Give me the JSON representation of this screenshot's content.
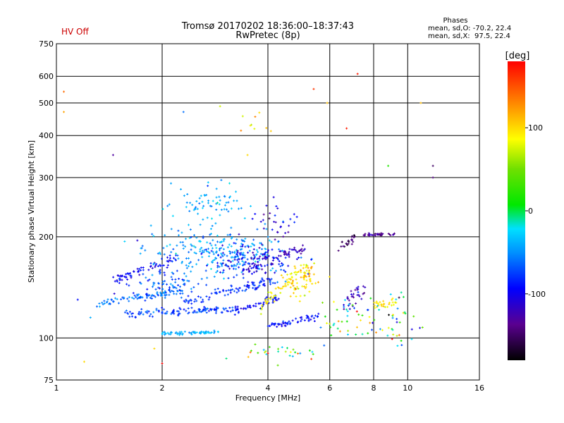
{
  "header": {
    "status": "HV Off",
    "status_color": "#cc0000",
    "title_line1": "Tromsø 20170202 18:36:00–18:37:43",
    "title_line2": "RwPretec (8p)",
    "phase_title": "Phases",
    "phase_line_o": "mean, sd,O: -70.2, 22.4",
    "phase_line_x": "mean, sd,X:  97.5, 22.4"
  },
  "colorbar": {
    "unit": "deg",
    "range": [
      -180,
      180
    ],
    "ticks": [
      {
        "value": 100,
        "label": "100"
      },
      {
        "value": 0,
        "label": "0"
      },
      {
        "value": -100,
        "label": "-100"
      }
    ]
  },
  "chart_data": {
    "type": "scatter",
    "title": "Tromsø 20170202 18:36:00–18:37:43",
    "subtitle": "RwPretec (8p)",
    "xlabel": "Frequency [MHz]",
    "ylabel": "Stationary phase Virtual Height [km]",
    "xscale": "log",
    "yscale": "log",
    "xlim": [
      1,
      16
    ],
    "ylim": [
      75,
      750
    ],
    "xticks": [
      1,
      2,
      4,
      6,
      8,
      10,
      16
    ],
    "yticks": [
      75,
      100,
      200,
      300,
      400,
      500,
      600,
      750
    ],
    "grid": true,
    "traces": [
      {
        "x": [
          1.45,
          2.2
        ],
        "y": [
          148,
          175
        ],
        "phase": -100,
        "spread": 0.03
      },
      {
        "x": [
          1.3,
          2.3
        ],
        "y": [
          127,
          138
        ],
        "phase": -60,
        "spread": 0.025
      },
      {
        "x": [
          1.55,
          3.3
        ],
        "y": [
          118,
          122
        ],
        "phase": -75,
        "spread": 0.02
      },
      {
        "x": [
          2.3,
          4.2
        ],
        "y": [
          127,
          150
        ],
        "phase": -80,
        "spread": 0.03
      },
      {
        "x": [
          3.2,
          4.3
        ],
        "y": [
          120,
          132
        ],
        "phase": -95,
        "spread": 0.02
      },
      {
        "x": [
          3.8,
          5.2
        ],
        "y": [
          124,
          165
        ],
        "phase": 90,
        "spread": 0.035
      },
      {
        "x": [
          4.0,
          5.6
        ],
        "y": [
          108,
          116
        ],
        "phase": -90,
        "spread": 0.02
      },
      {
        "x": [
          2.0,
          2.9
        ],
        "y": [
          103,
          104
        ],
        "phase": -40,
        "spread": 0.01
      },
      {
        "x": [
          3.4,
          4.0
        ],
        "y": [
          155,
          180
        ],
        "phase": -110,
        "spread": 0.04
      },
      {
        "x": [
          4.2,
          5.1
        ],
        "y": [
          175,
          185
        ],
        "phase": -120,
        "spread": 0.03
      },
      {
        "x": [
          6.3,
          7.1
        ],
        "y": [
          185,
          200
        ],
        "phase": -150,
        "spread": 0.03
      },
      {
        "x": [
          7.4,
          9.2
        ],
        "y": [
          203,
          203
        ],
        "phase": -135,
        "spread": 0.008
      },
      {
        "x": [
          6.5,
          7.6
        ],
        "y": [
          125,
          142
        ],
        "phase": -120,
        "spread": 0.05
      },
      {
        "x": [
          8.0,
          9.3
        ],
        "y": [
          125,
          128
        ],
        "phase": 95,
        "spread": 0.02
      }
    ],
    "clouds": [
      {
        "cx": 2.9,
        "cy": 180,
        "sx": 0.38,
        "sy": 0.14,
        "n": 260,
        "phase": -45,
        "pspread": 25
      },
      {
        "cx": 2.7,
        "cy": 255,
        "sx": 0.22,
        "sy": 0.12,
        "n": 70,
        "phase": -40,
        "pspread": 20
      },
      {
        "cx": 2.1,
        "cy": 145,
        "sx": 0.25,
        "sy": 0.08,
        "n": 80,
        "phase": -70,
        "pspread": 25
      },
      {
        "cx": 3.6,
        "cy": 170,
        "sx": 0.25,
        "sy": 0.1,
        "n": 110,
        "phase": -100,
        "pspread": 25
      },
      {
        "cx": 5.0,
        "cy": 150,
        "sx": 0.12,
        "sy": 0.1,
        "n": 70,
        "phase": 100,
        "pspread": 30
      },
      {
        "cx": 4.3,
        "cy": 225,
        "sx": 0.15,
        "sy": 0.14,
        "n": 30,
        "phase": -110,
        "pspread": 35
      },
      {
        "cx": 7.0,
        "cy": 115,
        "sx": 0.2,
        "sy": 0.14,
        "n": 45,
        "phase": 20,
        "pspread": 130
      },
      {
        "cx": 9.2,
        "cy": 110,
        "sx": 0.12,
        "sy": 0.16,
        "n": 35,
        "phase": 0,
        "pspread": 140
      },
      {
        "cx": 4.5,
        "cy": 90,
        "sx": 0.25,
        "sy": 0.05,
        "n": 30,
        "phase": 30,
        "pspread": 120
      },
      {
        "cx": 3.6,
        "cy": 440,
        "sx": 0.15,
        "sy": 0.1,
        "n": 10,
        "phase": 90,
        "pspread": 40
      }
    ],
    "sparse": [
      {
        "x": 1.05,
        "y": 470,
        "phase": 120
      },
      {
        "x": 1.45,
        "y": 350,
        "phase": -130
      },
      {
        "x": 2.3,
        "y": 470,
        "phase": -60
      },
      {
        "x": 1.05,
        "y": 540,
        "phase": 140
      },
      {
        "x": 5.4,
        "y": 550,
        "phase": 160
      },
      {
        "x": 6.7,
        "y": 420,
        "phase": 170
      },
      {
        "x": 7.2,
        "y": 610,
        "phase": 170
      },
      {
        "x": 8.8,
        "y": 325,
        "phase": 20
      },
      {
        "x": 10.9,
        "y": 500,
        "phase": 110
      },
      {
        "x": 11.8,
        "y": 325,
        "phase": -150
      },
      {
        "x": 11.8,
        "y": 300,
        "phase": -140
      },
      {
        "x": 1.2,
        "y": 85,
        "phase": 100
      },
      {
        "x": 1.9,
        "y": 93,
        "phase": 100
      },
      {
        "x": 2.0,
        "y": 84,
        "phase": 180
      },
      {
        "x": 1.25,
        "y": 115,
        "phase": -40
      },
      {
        "x": 1.15,
        "y": 130,
        "phase": -90
      },
      {
        "x": 1.7,
        "y": 195,
        "phase": -110
      },
      {
        "x": 1.75,
        "y": 185,
        "phase": -60
      },
      {
        "x": 5.9,
        "y": 500,
        "phase": 110
      },
      {
        "x": 3.5,
        "y": 350,
        "phase": 100
      }
    ]
  }
}
